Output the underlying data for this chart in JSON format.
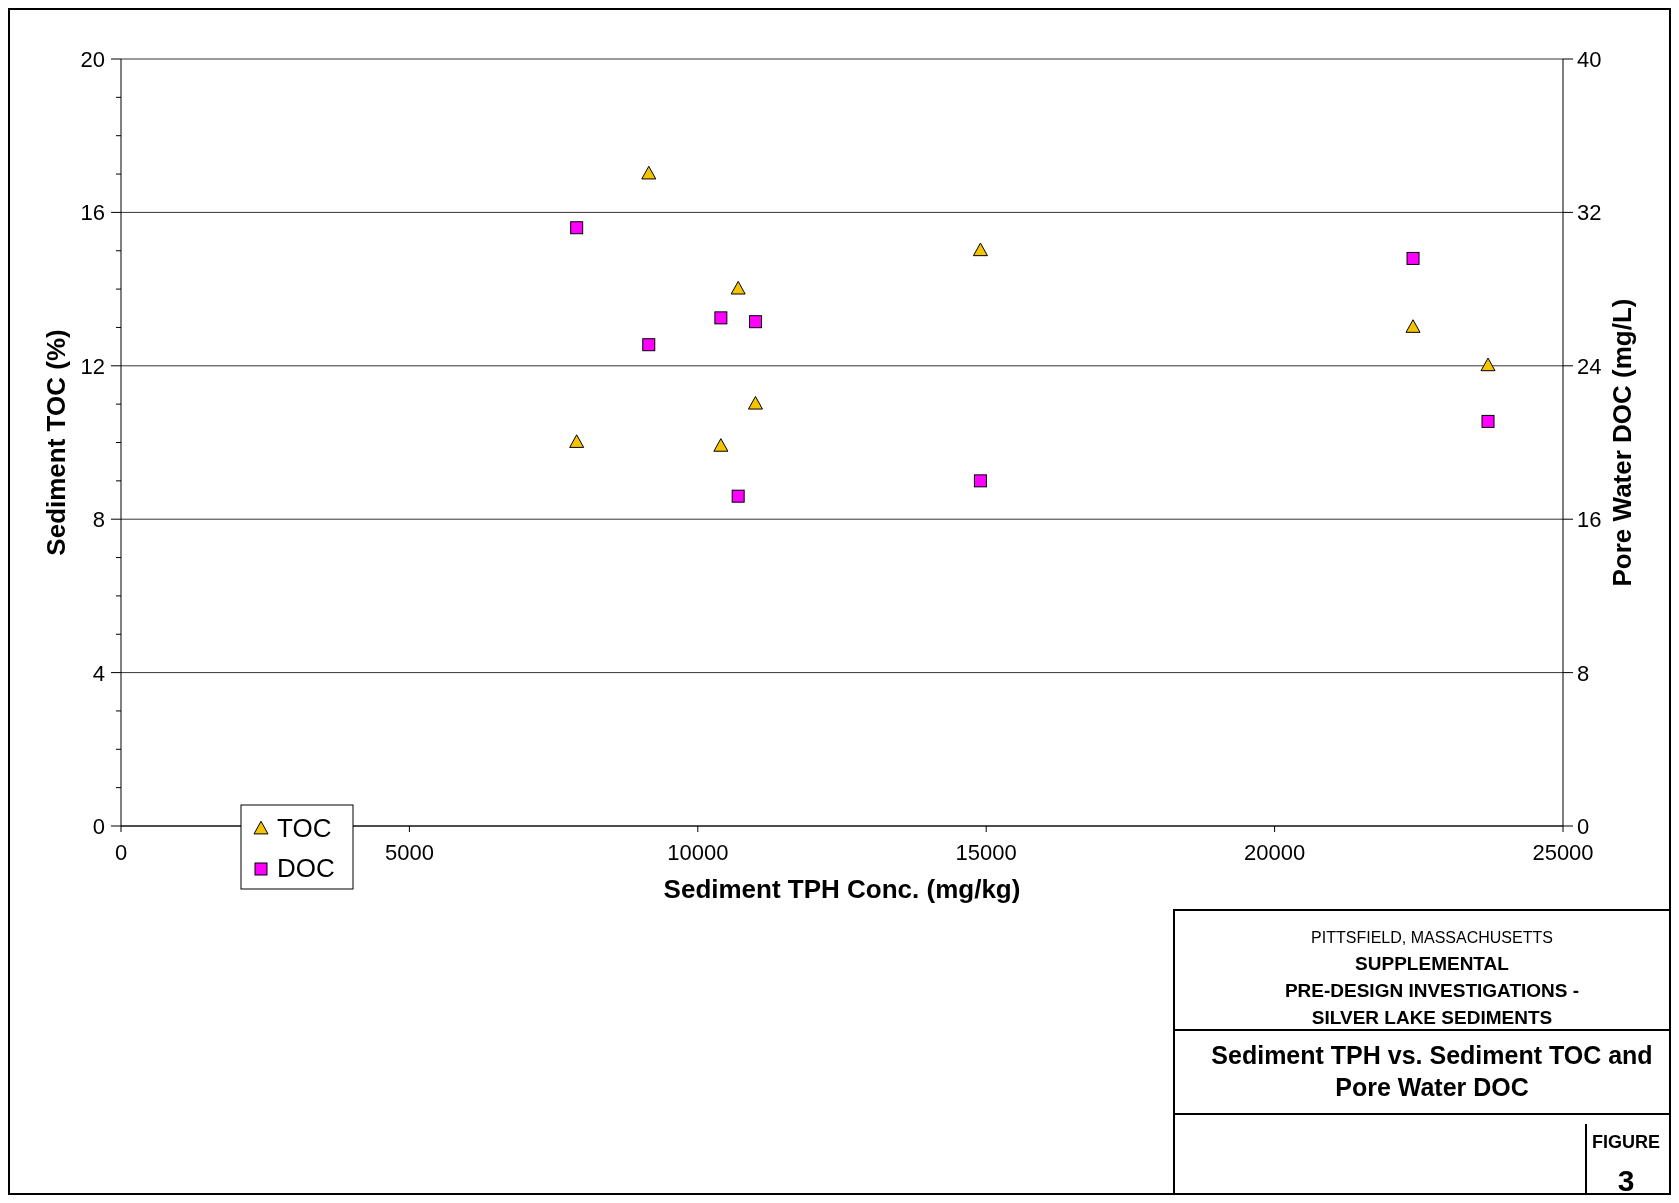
{
  "chart_data": {
    "type": "scatter",
    "title": "Sediment TPH vs. Sediment TOC and Pore Water DOC",
    "xlabel": "Sediment TPH Conc. (mg/kg)",
    "ylabel": "Sediment TOC (%)",
    "y2label": "Pore Water DOC (mg/L)",
    "xlim": [
      0,
      25000
    ],
    "xticks": [
      0,
      5000,
      10000,
      15000,
      20000,
      25000
    ],
    "ylim": [
      0,
      20
    ],
    "yticks": [
      0,
      {
        "value": 1,
        "label": null
      },
      {
        "value": 2,
        "label": null
      },
      {
        "value": 3,
        "label": null
      },
      4,
      {
        "value": 5,
        "label": null
      },
      {
        "value": 6,
        "label": null
      },
      {
        "value": 7,
        "label": null
      },
      8,
      {
        "value": 9,
        "label": null
      },
      {
        "value": 10,
        "label": null
      },
      {
        "value": 11,
        "label": null
      },
      12,
      {
        "value": 13,
        "label": null
      },
      {
        "value": 14,
        "label": null
      },
      {
        "value": 15,
        "label": null
      },
      16,
      {
        "value": 17,
        "label": null
      },
      {
        "value": 18,
        "label": null
      },
      {
        "value": 19,
        "label": null
      },
      20
    ],
    "y2lim": [
      0,
      40
    ],
    "y2ticks": [
      0,
      8,
      16,
      24,
      32,
      40
    ],
    "grid": "y",
    "legend": "bottom left",
    "series": [
      {
        "name": "TOC",
        "color": "#f5c400",
        "marker": "triangle",
        "x": [
          7900,
          9150,
          10700,
          11000,
          10400,
          14900,
          22400,
          23700
        ],
        "values": [
          10.0,
          17.0,
          14.0,
          11.0,
          9.9,
          15.0,
          13.0,
          12.0
        ]
      },
      {
        "name": "DOC",
        "color": "#ff00ff",
        "marker": "square",
        "axis": "y2",
        "x": [
          7900,
          9150,
          10400,
          11000,
          10700,
          14900,
          22400,
          23700
        ],
        "values": [
          31.2,
          25.1,
          26.5,
          26.3,
          17.2,
          18.0,
          29.6,
          21.1
        ]
      }
    ],
    "annotations": [
      "PITTSFIELD, MASSACHUSETTS",
      "SUPPLEMENTAL",
      "PRE-DESIGN INVESTIGATIONS -",
      "SILVER LAKE SEDIMENTS",
      "FIGURE",
      "3"
    ]
  }
}
